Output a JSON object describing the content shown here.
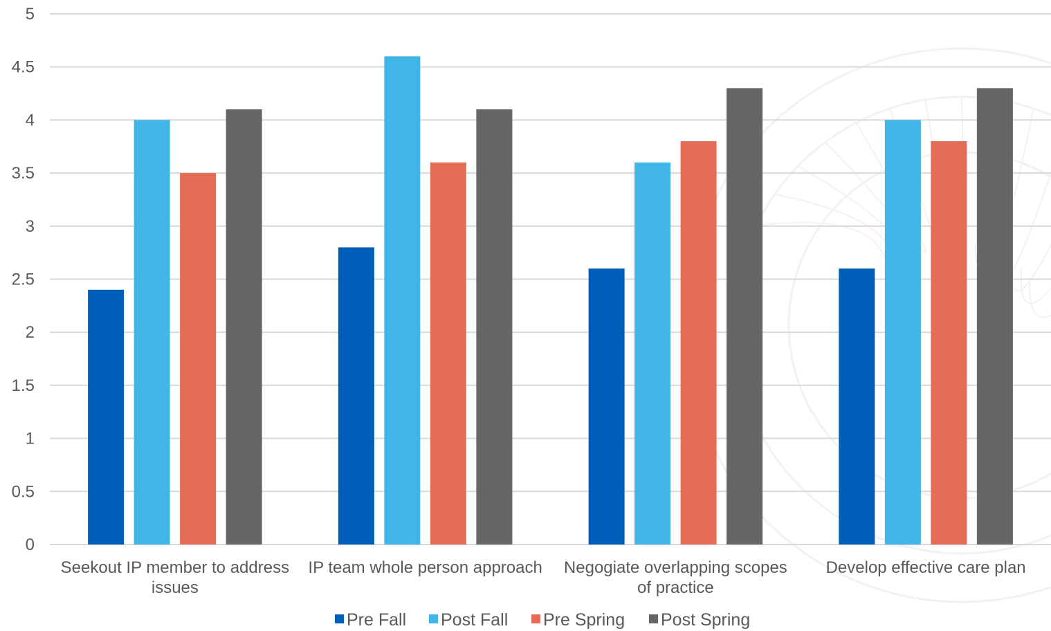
{
  "chart_data": {
    "type": "bar",
    "title": "",
    "xlabel": "",
    "ylabel": "",
    "ylim": [
      0,
      5
    ],
    "yticks": [
      "0",
      "0.5",
      "1",
      "1.5",
      "2",
      "2.5",
      "3",
      "3.5",
      "4",
      "4.5",
      "5"
    ],
    "categories": [
      [
        "Seekout IP member to address",
        "issues"
      ],
      [
        "IP team whole person approach"
      ],
      [
        "Negogiate overlapping scopes",
        "of practice"
      ],
      [
        "Develop effective care plan"
      ]
    ],
    "series": [
      {
        "name": "Pre Fall",
        "color": "#005EB8",
        "values": [
          2.4,
          2.8,
          2.6,
          2.6
        ]
      },
      {
        "name": "Post Fall",
        "color": "#41B6E6",
        "values": [
          4.0,
          4.6,
          3.6,
          4.0
        ]
      },
      {
        "name": "Pre Spring",
        "color": "#E56D57",
        "values": [
          3.5,
          3.6,
          3.8,
          3.8
        ]
      },
      {
        "name": "Post Spring",
        "color": "#666666",
        "values": [
          4.1,
          4.1,
          4.3,
          4.3
        ]
      }
    ],
    "grid": true,
    "legend_position": "bottom",
    "colors": {
      "grid": "#D9D9D9",
      "text": "#595959",
      "watermark": "#F2F2F2"
    }
  }
}
